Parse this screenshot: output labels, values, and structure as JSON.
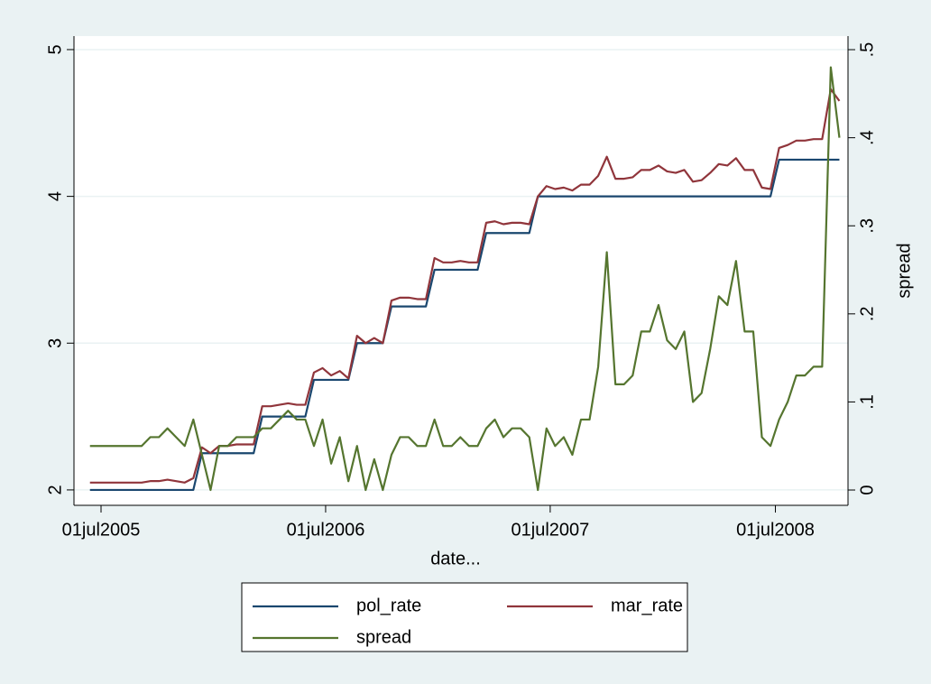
{
  "chart_data": {
    "type": "line",
    "x_label": "date...",
    "y2_label": "spread",
    "xlim": [
      16574,
      17832
    ],
    "ylim": [
      1.895,
      5.092
    ],
    "y2lim": [
      -0.0174,
      0.5154
    ],
    "xticks": [
      {
        "value": 16618,
        "label": "01jul2005"
      },
      {
        "value": 16983,
        "label": "01jul2006"
      },
      {
        "value": 17348,
        "label": "01jul2007"
      },
      {
        "value": 17714,
        "label": "01jul2008"
      }
    ],
    "yticks": [
      2,
      3,
      4,
      5
    ],
    "y2ticks": [
      0,
      {
        "value": 0.1,
        "label": ".1"
      },
      {
        "value": 0.2,
        "label": ".2"
      },
      {
        "value": 0.3,
        "label": ".3"
      },
      {
        "value": 0.4,
        "label": ".4"
      },
      {
        "value": 0.5,
        "label": ".5"
      }
    ],
    "grid": true,
    "legend": "bottom",
    "x": [
      16600,
      16614,
      16628,
      16642,
      16656,
      16670,
      16684,
      16698,
      16712,
      16726,
      16740,
      16754,
      16768,
      16782,
      16796,
      16810,
      16824,
      16838,
      16852,
      16866,
      16880,
      16894,
      16908,
      16922,
      16936,
      16950,
      16964,
      16978,
      16992,
      17006,
      17020,
      17034,
      17048,
      17062,
      17076,
      17090,
      17104,
      17118,
      17132,
      17146,
      17160,
      17174,
      17188,
      17202,
      17216,
      17230,
      17244,
      17258,
      17272,
      17286,
      17300,
      17314,
      17328,
      17342,
      17356,
      17370,
      17384,
      17398,
      17412,
      17426,
      17440,
      17454,
      17468,
      17482,
      17496,
      17510,
      17524,
      17538,
      17552,
      17566,
      17580,
      17594,
      17608,
      17622,
      17636,
      17650,
      17664,
      17678,
      17692,
      17706,
      17720,
      17734,
      17748,
      17762,
      17776,
      17790,
      17804,
      17818
    ],
    "series": [
      {
        "name": "pol_rate",
        "color": "#1a476f",
        "values": [
          2,
          2,
          2,
          2,
          2,
          2,
          2,
          2,
          2,
          2,
          2,
          2,
          2,
          2.25,
          2.25,
          2.25,
          2.25,
          2.25,
          2.25,
          2.25,
          2.5,
          2.5,
          2.5,
          2.5,
          2.5,
          2.5,
          2.75,
          2.75,
          2.75,
          2.75,
          2.75,
          3,
          3,
          3,
          3,
          3.25,
          3.25,
          3.25,
          3.25,
          3.25,
          3.5,
          3.5,
          3.5,
          3.5,
          3.5,
          3.5,
          3.75,
          3.75,
          3.75,
          3.75,
          3.75,
          3.75,
          4,
          4,
          4,
          4,
          4,
          4,
          4,
          4,
          4,
          4,
          4,
          4,
          4,
          4,
          4,
          4,
          4,
          4,
          4,
          4,
          4,
          4,
          4,
          4,
          4,
          4,
          4,
          4,
          4.25,
          4.25,
          4.25,
          4.25,
          4.25,
          4.25,
          4.25,
          4.25
        ]
      },
      {
        "name": "mar_rate",
        "color": "#90353b",
        "values": [
          2.05,
          2.05,
          2.05,
          2.05,
          2.05,
          2.05,
          2.05,
          2.06,
          2.06,
          2.07,
          2.06,
          2.05,
          2.08,
          2.29,
          2.25,
          2.3,
          2.3,
          2.31,
          2.31,
          2.31,
          2.57,
          2.57,
          2.58,
          2.59,
          2.58,
          2.58,
          2.8,
          2.83,
          2.78,
          2.81,
          2.76,
          3.05,
          3,
          3.035,
          3,
          3.29,
          3.31,
          3.31,
          3.3,
          3.3,
          3.58,
          3.55,
          3.55,
          3.56,
          3.55,
          3.55,
          3.82,
          3.83,
          3.81,
          3.82,
          3.82,
          3.81,
          4,
          4.07,
          4.05,
          4.06,
          4.04,
          4.08,
          4.08,
          4.14,
          4.27,
          4.12,
          4.12,
          4.13,
          4.18,
          4.18,
          4.21,
          4.17,
          4.16,
          4.18,
          4.1,
          4.11,
          4.16,
          4.22,
          4.21,
          4.26,
          4.18,
          4.18,
          4.06,
          4.05,
          4.33,
          4.35,
          4.38,
          4.38,
          4.39,
          4.39,
          4.73,
          4.65
        ]
      },
      {
        "name": "spread",
        "color": "#55752f",
        "axis": "y2",
        "values": [
          0.05,
          0.05,
          0.05,
          0.05,
          0.05,
          0.05,
          0.05,
          0.06,
          0.06,
          0.07,
          0.06,
          0.05,
          0.08,
          0.04,
          0,
          0.05,
          0.05,
          0.06,
          0.06,
          0.06,
          0.07,
          0.07,
          0.08,
          0.09,
          0.08,
          0.08,
          0.05,
          0.08,
          0.03,
          0.06,
          0.01,
          0.05,
          0,
          0.035,
          0,
          0.04,
          0.06,
          0.06,
          0.05,
          0.05,
          0.08,
          0.05,
          0.05,
          0.06,
          0.05,
          0.05,
          0.07,
          0.08,
          0.06,
          0.07,
          0.07,
          0.06,
          0,
          0.07,
          0.05,
          0.06,
          0.04,
          0.08,
          0.08,
          0.14,
          0.27,
          0.12,
          0.12,
          0.13,
          0.18,
          0.18,
          0.21,
          0.17,
          0.16,
          0.18,
          0.1,
          0.11,
          0.16,
          0.22,
          0.21,
          0.26,
          0.18,
          0.18,
          0.06,
          0.05,
          0.08,
          0.1,
          0.13,
          0.13,
          0.14,
          0.14,
          0.48,
          0.4
        ]
      }
    ]
  }
}
